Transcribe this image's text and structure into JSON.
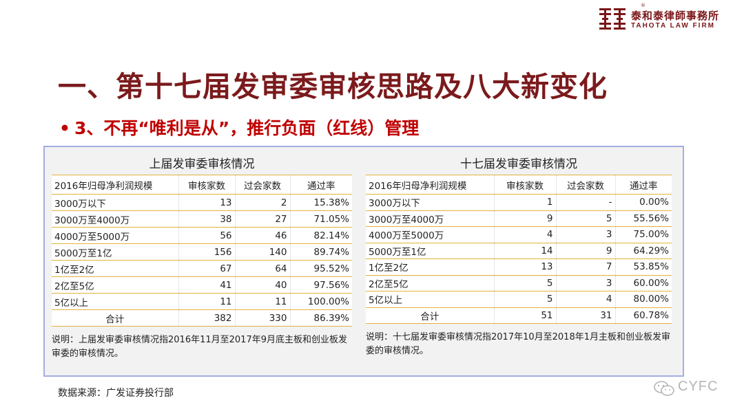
{
  "logo": {
    "name_cn": "泰和泰律師事務所",
    "name_en": "TAHOTA LAW FIRM",
    "registered_mark": "®",
    "color": "#7a1618"
  },
  "title": "一、第十七届发审委审核思路及八大新变化",
  "subtitle": {
    "bullet": "•",
    "text": "3、不再“唯利是从”，推行负面（红线）管理"
  },
  "left_panel": {
    "title": "上届发审委审核情况",
    "headers": [
      "2016年归母净利润规模",
      "审核家数",
      "过会家数",
      "通过率"
    ],
    "rows": [
      [
        "3000万以下",
        "13",
        "2",
        "15.38%"
      ],
      [
        "3000万至4000万",
        "38",
        "27",
        "71.05%"
      ],
      [
        "4000万至5000万",
        "56",
        "46",
        "82.14%"
      ],
      [
        "5000万至1亿",
        "156",
        "140",
        "89.74%"
      ],
      [
        "1亿至2亿",
        "67",
        "64",
        "95.52%"
      ],
      [
        "2亿至5亿",
        "41",
        "40",
        "97.56%"
      ],
      [
        "5亿以上",
        "11",
        "11",
        "100.00%"
      ]
    ],
    "total": [
      "合计",
      "382",
      "330",
      "86.39%"
    ],
    "note": "说明：上届发审委审核情况指2016年11月至2017年9月底主板和创业板发审委的审核情况。"
  },
  "right_panel": {
    "title": "十七届发审委审核情况",
    "headers": [
      "2016年归母净利润规模",
      "审核家数",
      "过会家数",
      "通过率"
    ],
    "rows": [
      [
        "3000万以下",
        "1",
        "-",
        "0.00%"
      ],
      [
        "3000万至4000万",
        "9",
        "5",
        "55.56%"
      ],
      [
        "4000万至5000万",
        "4",
        "3",
        "75.00%"
      ],
      [
        "5000万至1亿",
        "14",
        "9",
        "64.29%"
      ],
      [
        "1亿至2亿",
        "13",
        "7",
        "53.85%"
      ],
      [
        "2亿至5亿",
        "5",
        "3",
        "60.00%"
      ],
      [
        "5亿以上",
        "5",
        "4",
        "80.00%"
      ]
    ],
    "total": [
      "合计",
      "51",
      "31",
      "60.78%"
    ],
    "note": "说明：十七届发审委审核情况指2017年10月至2018年1月主板和创业板发审委的审核情况。"
  },
  "source": "数据来源：广发证券投行部",
  "watermark": {
    "icon": "wechat-icon",
    "text": "CYFC"
  },
  "colors": {
    "title": "#7b1a1c",
    "subtitle": "#c00000",
    "frame_border": "#a3aee0",
    "row_rule": "#e3b13a"
  }
}
